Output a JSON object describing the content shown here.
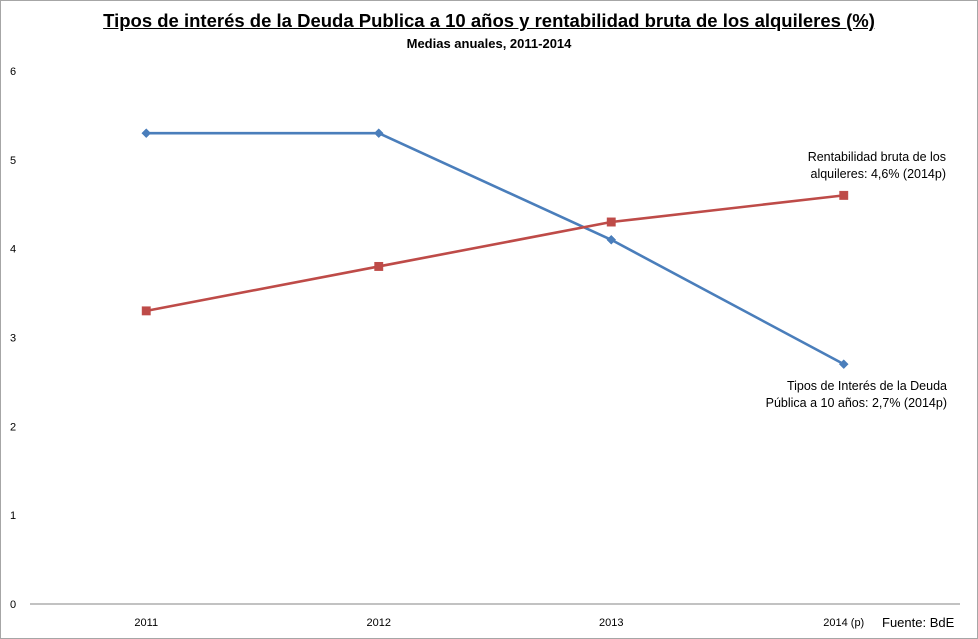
{
  "title": "Tipos de interés de la  Deuda Publica a 10 años y rentabilidad bruta  de los alquileres (%)",
  "subtitle": "Medias anuales, 2011-2014",
  "source": "Fuente: BdE",
  "annotations": {
    "rentabilidad": [
      "Rentabilidad bruta de los",
      "alquileres: 4,6% (2014p)"
    ],
    "tipos": [
      "Tipos de Interés de la Deuda",
      "Pública a 10 años: 2,7% (2014p)"
    ]
  },
  "colors": {
    "tipos": "#4a7ebb",
    "rentabilidad": "#be4b48",
    "axis": "#868686"
  },
  "chart_data": {
    "type": "line",
    "categories": [
      "2011",
      "2012",
      "2013",
      "2014 (p)"
    ],
    "yticks": [
      "0",
      "1",
      "2",
      "3",
      "4",
      "5",
      "6"
    ],
    "ylim": [
      0,
      6
    ],
    "grid": false,
    "series": [
      {
        "key": "tipos",
        "marker": "diamond",
        "values": [
          5.3,
          5.3,
          4.1,
          2.7
        ]
      },
      {
        "key": "rentabilidad",
        "marker": "square",
        "values": [
          3.3,
          3.8,
          4.3,
          4.6
        ]
      }
    ]
  }
}
